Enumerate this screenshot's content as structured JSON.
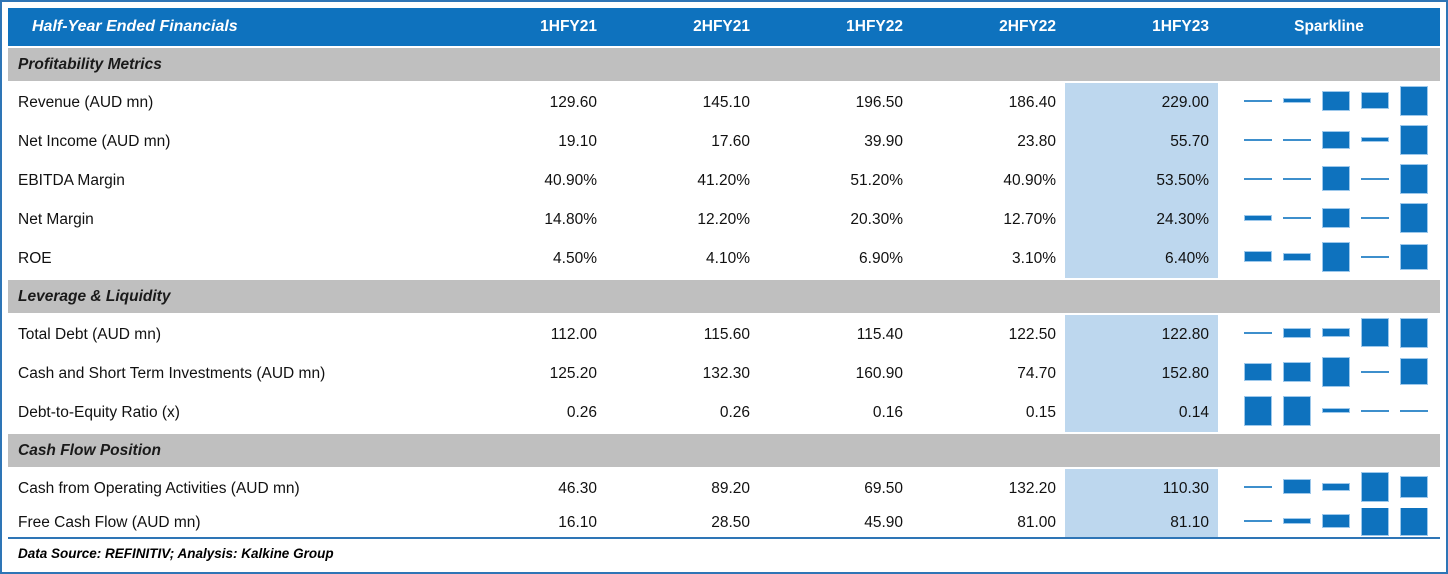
{
  "colors": {
    "accent_blue": "#0E72BE",
    "thin_blue": "#3E8FCC",
    "highlight_blue": "#BDD7EE",
    "section_gray": "#BFBFBF",
    "border_blue": "#2E75B6"
  },
  "table": {
    "title": "Half-Year Ended Financials",
    "columns": [
      "1HFY21",
      "2HFY21",
      "1HFY22",
      "2HFY22",
      "1HFY23"
    ],
    "sparkline_label": "Sparkline",
    "highlighted_column": "1HFY23",
    "sections": [
      {
        "label": "Profitability Metrics",
        "rows": [
          {
            "label": "Revenue (AUD mn)",
            "values": [
              "129.60",
              "145.10",
              "196.50",
              "186.40",
              "229.00"
            ],
            "numeric": [
              129.6,
              145.1,
              196.5,
              186.4,
              229.0
            ]
          },
          {
            "label": "Net Income (AUD mn)",
            "values": [
              "19.10",
              "17.60",
              "39.90",
              "23.80",
              "55.70"
            ],
            "numeric": [
              19.1,
              17.6,
              39.9,
              23.8,
              55.7
            ]
          },
          {
            "label": "EBITDA Margin",
            "values": [
              "40.90%",
              "41.20%",
              "51.20%",
              "40.90%",
              "53.50%"
            ],
            "numeric": [
              40.9,
              41.2,
              51.2,
              40.9,
              53.5
            ]
          },
          {
            "label": "Net Margin",
            "values": [
              "14.80%",
              "12.20%",
              "20.30%",
              "12.70%",
              "24.30%"
            ],
            "numeric": [
              14.8,
              12.2,
              20.3,
              12.7,
              24.3
            ]
          },
          {
            "label": "ROE",
            "values": [
              "4.50%",
              "4.10%",
              "6.90%",
              "3.10%",
              "6.40%"
            ],
            "numeric": [
              4.5,
              4.1,
              6.9,
              3.1,
              6.4
            ]
          }
        ]
      },
      {
        "label": "Leverage & Liquidity",
        "rows": [
          {
            "label": "Total Debt (AUD mn)",
            "values": [
              "112.00",
              "115.60",
              "115.40",
              "122.50",
              "122.80"
            ],
            "numeric": [
              112.0,
              115.6,
              115.4,
              122.5,
              122.8
            ]
          },
          {
            "label": "Cash and Short Term Investments (AUD mn)",
            "values": [
              "125.20",
              "132.30",
              "160.90",
              "74.70",
              "152.80"
            ],
            "numeric": [
              125.2,
              132.3,
              160.9,
              74.7,
              152.8
            ]
          },
          {
            "label": "Debt-to-Equity Ratio (x)",
            "values": [
              "0.26",
              "0.26",
              "0.16",
              "0.15",
              "0.14"
            ],
            "numeric": [
              0.26,
              0.26,
              0.16,
              0.15,
              0.14
            ]
          }
        ]
      },
      {
        "label": "Cash Flow Position",
        "rows": [
          {
            "label": "Cash from Operating Activities (AUD mn)",
            "values": [
              "46.30",
              "89.20",
              "69.50",
              "132.20",
              "110.30"
            ],
            "numeric": [
              46.3,
              89.2,
              69.5,
              132.2,
              110.3
            ]
          },
          {
            "label": "Free Cash Flow (AUD mn)",
            "values": [
              "16.10",
              "28.50",
              "45.90",
              "81.00",
              "81.10"
            ],
            "numeric": [
              16.1,
              28.5,
              45.9,
              81.0,
              81.1
            ]
          }
        ]
      }
    ],
    "footer": "Data Source: REFINITIV; Analysis: Kalkine Group"
  },
  "chart_data": {
    "type": "table",
    "title": "Half-Year Ended Financials",
    "categories": [
      "1HFY21",
      "2HFY21",
      "1HFY22",
      "2HFY22",
      "1HFY23"
    ],
    "sections": [
      {
        "label": "Profitability Metrics",
        "series": [
          {
            "name": "Revenue (AUD mn)",
            "values": [
              129.6,
              145.1,
              196.5,
              186.4,
              229.0
            ]
          },
          {
            "name": "Net Income (AUD mn)",
            "values": [
              19.1,
              17.6,
              39.9,
              23.8,
              55.7
            ]
          },
          {
            "name": "EBITDA Margin",
            "values": [
              40.9,
              41.2,
              51.2,
              40.9,
              53.5
            ],
            "unit": "%"
          },
          {
            "name": "Net Margin",
            "values": [
              14.8,
              12.2,
              20.3,
              12.7,
              24.3
            ],
            "unit": "%"
          },
          {
            "name": "ROE",
            "values": [
              4.5,
              4.1,
              6.9,
              3.1,
              6.4
            ],
            "unit": "%"
          }
        ]
      },
      {
        "label": "Leverage & Liquidity",
        "series": [
          {
            "name": "Total Debt (AUD mn)",
            "values": [
              112.0,
              115.6,
              115.4,
              122.5,
              122.8
            ]
          },
          {
            "name": "Cash and Short Term Investments (AUD mn)",
            "values": [
              125.2,
              132.3,
              160.9,
              74.7,
              152.8
            ]
          },
          {
            "name": "Debt-to-Equity Ratio (x)",
            "values": [
              0.26,
              0.26,
              0.16,
              0.15,
              0.14
            ]
          }
        ]
      },
      {
        "label": "Cash Flow Position",
        "series": [
          {
            "name": "Cash from Operating Activities (AUD mn)",
            "values": [
              46.3,
              89.2,
              69.5,
              132.2,
              110.3
            ]
          },
          {
            "name": "Free Cash Flow (AUD mn)",
            "values": [
              16.1,
              28.5,
              45.9,
              81.0,
              81.1
            ]
          }
        ]
      }
    ],
    "sparkline": {
      "type": "bar",
      "scaling": "min-max per row",
      "position": "right column"
    },
    "annotations": [
      "1HFY23 column highlighted light blue"
    ],
    "footnote": "Data Source: REFINITIV; Analysis: Kalkine Group"
  }
}
